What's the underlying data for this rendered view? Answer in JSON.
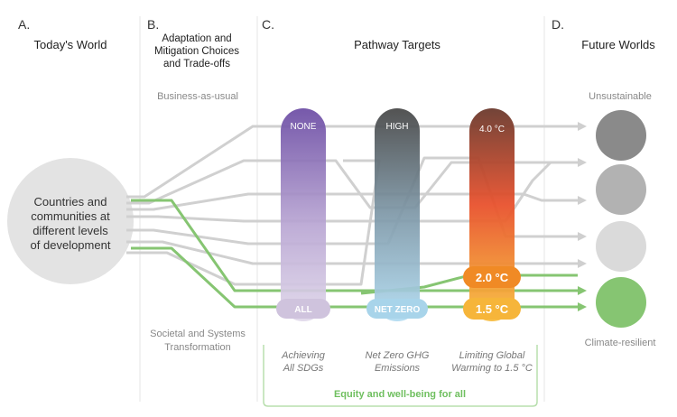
{
  "sections": {
    "a": {
      "letter": "A.",
      "title": "Today's World"
    },
    "b": {
      "letter": "B.",
      "title_lines": [
        "Adaptation and",
        "Mitigation Choices",
        "and Trade-offs"
      ]
    },
    "c": {
      "letter": "C.",
      "title": "Pathway Targets"
    },
    "d": {
      "letter": "D.",
      "title": "Future Worlds"
    }
  },
  "today_world_lines": [
    "Countries and",
    "communities at",
    "different levels",
    "of development"
  ],
  "business_as_usual": "Business-as-usual",
  "societal_transformation_lines": [
    "Societal and Systems",
    "Transformation"
  ],
  "bars": {
    "sdg": {
      "top": "NONE",
      "bottom": "ALL",
      "caption_lines": [
        "Achieving",
        "All SDGs"
      ]
    },
    "ghg": {
      "top": "HIGH",
      "bottom": "NET ZERO",
      "caption_lines": [
        "Net Zero GHG",
        "Emissions"
      ]
    },
    "warming": {
      "top": "4.0 °C",
      "mid": "2.0 °C",
      "bottom": "1.5 °C",
      "caption_lines": [
        "Limiting Global",
        "Warming to 1.5 °C"
      ]
    }
  },
  "equity_label": "Equity and well-being for all",
  "future_labels": {
    "unsustainable": "Unsustainable",
    "climate_resilient": "Climate-resilient"
  },
  "colors": {
    "grey_path": "#cfcfcf",
    "green_path": "#7cc46b",
    "sdg_top": "#6e4aa5",
    "sdg_bottom": "#d9cfe6",
    "ghg_top": "#4a4a4a",
    "ghg_bottom": "#a9d6ee",
    "warm_top": "#6b3a2e",
    "warm_mid": "#e9502b",
    "warm_bottom": "#f6b53a",
    "world_1": "#8a8a8a",
    "world_2": "#b4b4b4",
    "world_3": "#dadada",
    "world_4": "#86c572"
  }
}
